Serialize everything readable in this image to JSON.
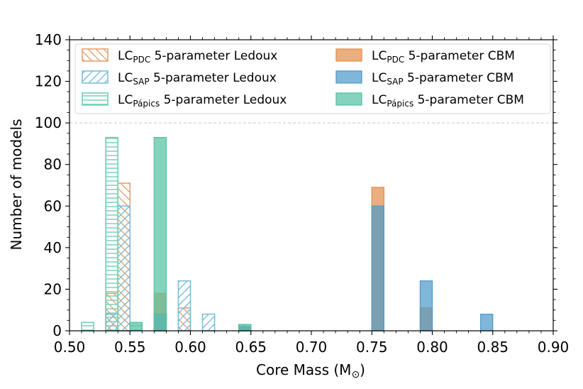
{
  "chart_data": {
    "type": "bar",
    "xlabel": "Core Mass (M",
    "xlabel_sub": "⊙",
    "xlabel_close": ")",
    "ylabel": "Number of models",
    "xlim": [
      0.5,
      0.9
    ],
    "ylim": [
      0,
      140
    ],
    "xticks": [
      "0.50",
      "0.55",
      "0.60",
      "0.65",
      "0.70",
      "0.75",
      "0.80",
      "0.85",
      "0.90"
    ],
    "yticks": [
      "0",
      "20",
      "40",
      "60",
      "80",
      "100",
      "120",
      "140"
    ],
    "reference_line_y": 100,
    "bin_width": 0.01,
    "legend_position": "top",
    "series": [
      {
        "name": "LC_PDC 5-parameter Ledoux",
        "prefix": "LC",
        "sub": "PDC",
        "suffix": " 5-parameter Ledoux",
        "style": "hatch-diag-down",
        "color": "#E8A270",
        "x": [
          0.535,
          0.545,
          0.575,
          0.595,
          0.645
        ],
        "values": [
          18,
          71,
          8,
          11,
          2
        ]
      },
      {
        "name": "LC_SAP 5-parameter Ledoux",
        "prefix": "LC",
        "sub": "SAP",
        "suffix": " 5-parameter Ledoux",
        "style": "hatch-diag-up",
        "color": "#7BBEDD",
        "x": [
          0.535,
          0.545,
          0.575,
          0.595,
          0.615,
          0.645
        ],
        "values": [
          8,
          60,
          8,
          24,
          8,
          3
        ]
      },
      {
        "name": "LC_Pápics 5-parameter Ledoux",
        "prefix": "LC",
        "sub": "Pápics",
        "suffix": " 5-parameter Ledoux",
        "style": "hatch-horizontal",
        "color": "#6FCFB4",
        "x": [
          0.515,
          0.535,
          0.555
        ],
        "values": [
          4,
          93,
          4
        ]
      },
      {
        "name": "LC_PDC 5-parameter CBM",
        "prefix": "LC",
        "sub": "PDC",
        "suffix": " 5-parameter CBM",
        "style": "filled",
        "color": "#E48F4D",
        "x": [
          0.575,
          0.645,
          0.755,
          0.795
        ],
        "values": [
          18,
          2,
          69,
          11
        ]
      },
      {
        "name": "LC_SAP 5-parameter CBM",
        "prefix": "LC",
        "sub": "SAP",
        "suffix": " 5-parameter CBM",
        "style": "filled",
        "color": "#4F9BC9",
        "x": [
          0.575,
          0.645,
          0.755,
          0.795,
          0.845
        ],
        "values": [
          8,
          2,
          60,
          24,
          8
        ]
      },
      {
        "name": "LC_Pápics 5-parameter CBM",
        "prefix": "LC",
        "sub": "Pápics",
        "suffix": " 5-parameter CBM",
        "style": "filled",
        "color": "#58C2A3",
        "x": [
          0.555,
          0.575,
          0.645
        ],
        "values": [
          4,
          93,
          3
        ]
      }
    ]
  }
}
